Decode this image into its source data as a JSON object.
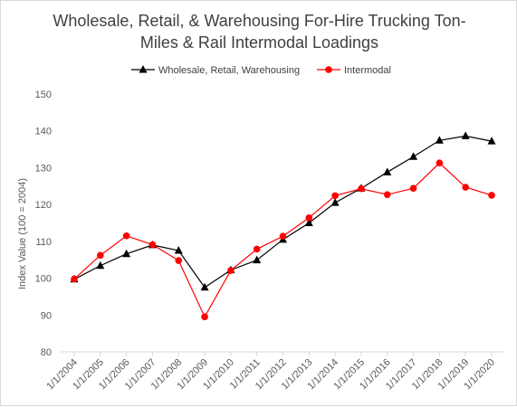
{
  "chart_data": {
    "type": "line",
    "title_lines": [
      "Wholesale, Retail, & Warehousing For-Hire Trucking Ton-",
      "Miles & Rail Intermodal Loadings"
    ],
    "xlabel": "",
    "ylabel": "Index Value (100 = 2004)",
    "ylim": [
      80,
      150
    ],
    "yticks": [
      80,
      90,
      100,
      110,
      120,
      130,
      140,
      150
    ],
    "categories": [
      "1/1/2004",
      "1/1/2005",
      "1/1/2006",
      "1/1/2007",
      "1/1/2008",
      "1/1/2009",
      "1/1/2010",
      "1/1/2011",
      "1/1/2012",
      "1/1/2013",
      "1/1/2014",
      "1/1/2015",
      "1/1/2016",
      "1/1/2017",
      "1/1/2018",
      "1/1/2019",
      "1/1/2020"
    ],
    "grid": false,
    "legend_position": "top",
    "series": [
      {
        "name": "Wholesale, Retail, Warehousing",
        "color": "#000000",
        "marker": "triangle",
        "values": [
          99.7,
          103.4,
          106.6,
          109.0,
          107.5,
          97.5,
          102.2,
          104.9,
          110.5,
          115.0,
          120.5,
          124.4,
          128.8,
          133.0,
          137.4,
          138.6,
          137.2
        ]
      },
      {
        "name": "Intermodal",
        "color": "#ff0000",
        "marker": "circle",
        "values": [
          99.8,
          106.2,
          111.5,
          109.1,
          104.8,
          89.5,
          102.1,
          107.9,
          111.4,
          116.4,
          122.4,
          124.3,
          122.7,
          124.4,
          131.3,
          124.7,
          122.5
        ]
      }
    ]
  }
}
